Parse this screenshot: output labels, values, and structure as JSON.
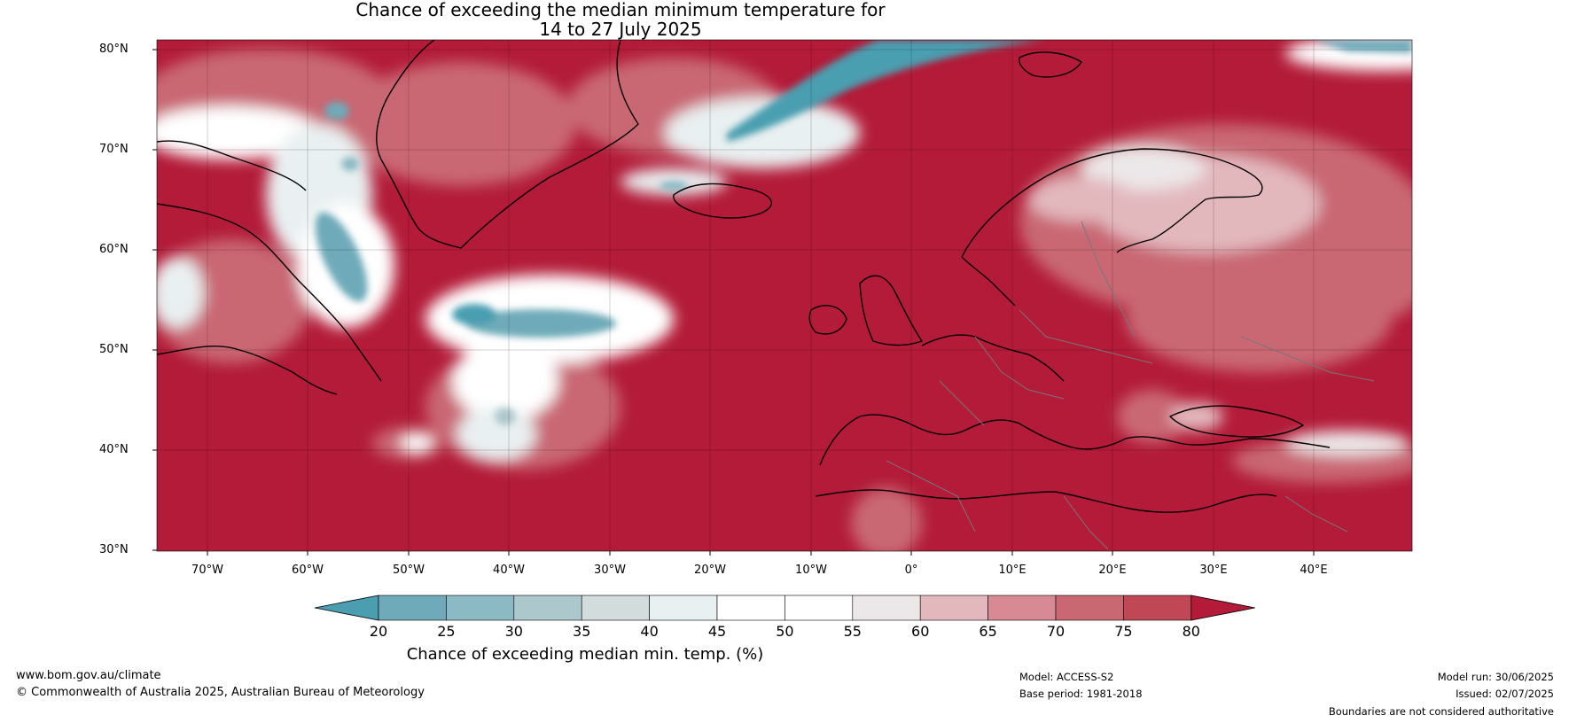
{
  "title": {
    "line1": "Chance of exceeding the median minimum temperature for",
    "line2": "14 to 27 July 2025"
  },
  "map": {
    "lat_labels": [
      "80°N",
      "70°N",
      "60°N",
      "50°N",
      "40°N",
      "30°N"
    ],
    "lon_labels": [
      "70°W",
      "60°W",
      "50°W",
      "40°W",
      "30°W",
      "20°W",
      "10°W",
      "0°",
      "10°E",
      "20°E",
      "30°E",
      "40°E"
    ],
    "lat_range": [
      30,
      81
    ],
    "lon_range": [
      -75,
      50
    ]
  },
  "colorbar": {
    "ticks": [
      "20",
      "25",
      "30",
      "35",
      "40",
      "45",
      "50",
      "55",
      "60",
      "65",
      "70",
      "75",
      "80"
    ],
    "colors": [
      "#4a9eb0",
      "#6eaab9",
      "#8bbac5",
      "#adc8cd",
      "#d3dcdd",
      "#e9f0f1",
      "#ffffff",
      "#ffffff",
      "#ece7e8",
      "#e2b8bd",
      "#d78a93",
      "#c96873",
      "#bf4756",
      "#b31b38"
    ],
    "label": "Chance of exceeding median min. temp. (%)"
  },
  "footer": {
    "website": "www.bom.gov.au/climate",
    "copyright": "© Commonwealth of Australia 2025, Australian Bureau of Meteorology",
    "model": "Model: ACCESS-S2",
    "base_period": "Base period: 1981-2018",
    "model_run": "Model run: 30/06/2025",
    "issued": "Issued: 02/07/2025",
    "disclaimer": "Boundaries are not considered authoritative"
  }
}
